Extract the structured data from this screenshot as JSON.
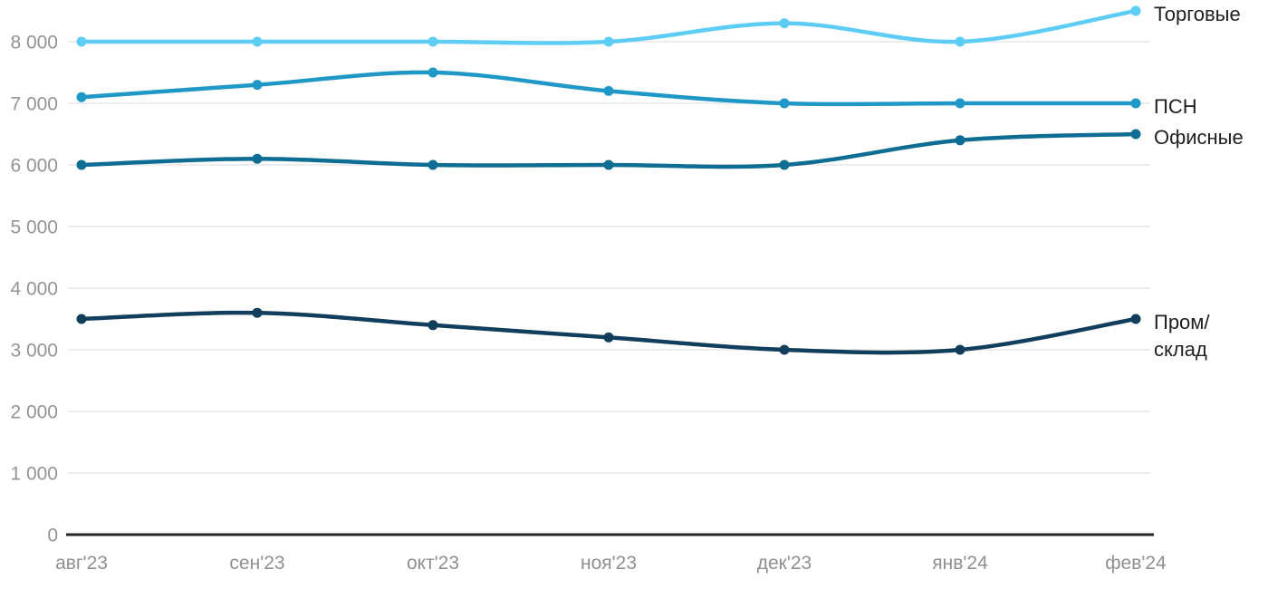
{
  "chart_data": {
    "type": "line",
    "title": "",
    "xlabel": "",
    "ylabel": "",
    "categories": [
      "авг'23",
      "сен'23",
      "окт'23",
      "ноя'23",
      "дек'23",
      "янв'24",
      "фев'24"
    ],
    "series": [
      {
        "id": "trade",
        "name": "Торговые",
        "label_lines": [
          "Торговые"
        ],
        "color": "#5ecdf5",
        "values": [
          8000,
          8000,
          8000,
          8000,
          8300,
          8000,
          8500
        ]
      },
      {
        "id": "psn",
        "name": "ПСН",
        "label_lines": [
          "ПСН"
        ],
        "color": "#2098c7",
        "values": [
          7100,
          7300,
          7500,
          7200,
          7000,
          7000,
          7000
        ]
      },
      {
        "id": "office",
        "name": "Офисные",
        "label_lines": [
          "Офисные"
        ],
        "color": "#0e6d92",
        "values": [
          6000,
          6100,
          6000,
          6000,
          6000,
          6400,
          6500
        ]
      },
      {
        "id": "industrial",
        "name": "Пром/склад",
        "label_lines": [
          "Пром/",
          "склад"
        ],
        "color": "#103e5c",
        "values": [
          3500,
          3600,
          3400,
          3200,
          3000,
          3000,
          3500
        ]
      }
    ],
    "y_axis": {
      "ticks": [
        0,
        1000,
        2000,
        3000,
        4000,
        5000,
        6000,
        7000,
        8000
      ],
      "tick_labels": [
        "0",
        "1 000",
        "2 000",
        "3 000",
        "4 000",
        "5 000",
        "6 000",
        "7 000",
        "8 000"
      ],
      "range": [
        0,
        8600
      ]
    },
    "grid": "horizontal",
    "legend_position": "right-end-of-lines",
    "colors": {
      "grid_line": "#e7e7e7",
      "axis_line": "#262626",
      "y_tick_label": "#949494",
      "x_tick_label": "#8f8f8f",
      "series_label": "#1f1f1f",
      "background": "#ffffff"
    }
  }
}
